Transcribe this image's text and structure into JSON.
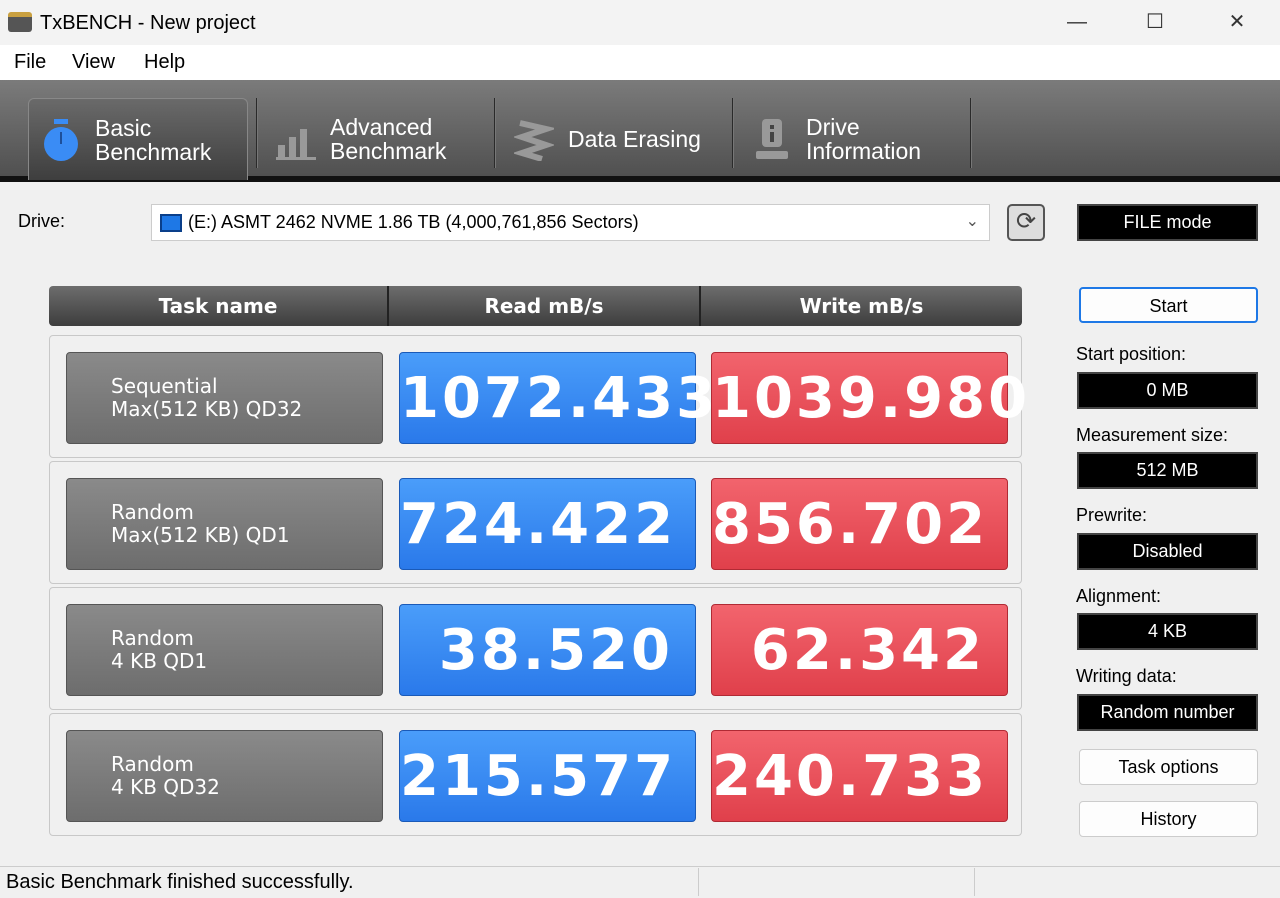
{
  "window": {
    "title": "TxBENCH - New project",
    "controls": [
      "minimize",
      "maximize",
      "close"
    ]
  },
  "menu": [
    "File",
    "View",
    "Help"
  ],
  "tabs": [
    {
      "line1": "Basic",
      "line2": "Benchmark",
      "icon": "stopwatch-icon",
      "active": true
    },
    {
      "line1": "Advanced",
      "line2": "Benchmark",
      "icon": "bar-chart-icon",
      "active": false
    },
    {
      "line1": "Data Erasing",
      "line2": "",
      "icon": "eraser-spring-icon",
      "active": false
    },
    {
      "line1": "Drive",
      "line2": "Information",
      "icon": "drive-info-icon",
      "active": false
    }
  ],
  "drive": {
    "label": "Drive:",
    "value": "(E:) ASMT 2462 NVME  1.86 TB (4,000,761,856 Sectors)"
  },
  "mode": "FILE mode",
  "table": {
    "headers": [
      "Task name",
      "Read mB/s",
      "Write mB/s"
    ],
    "rows": [
      {
        "name1": "Sequential",
        "name2": "Max(512 KB) QD32",
        "read": "1072.433",
        "write": "1039.980"
      },
      {
        "name1": "Random",
        "name2": "Max(512 KB) QD1",
        "read": "724.422",
        "write": "856.702"
      },
      {
        "name1": "Random",
        "name2": "4 KB QD1",
        "read": "38.520",
        "write": "62.342"
      },
      {
        "name1": "Random",
        "name2": "4 KB QD32",
        "read": "215.577",
        "write": "240.733"
      }
    ]
  },
  "panel": {
    "start": "Start",
    "start_position_label": "Start position:",
    "start_position": "0 MB",
    "measurement_size_label": "Measurement size:",
    "measurement_size": "512 MB",
    "prewrite_label": "Prewrite:",
    "prewrite": "Disabled",
    "alignment_label": "Alignment:",
    "alignment": "4 KB",
    "writing_data_label": "Writing data:",
    "writing_data": "Random number",
    "task_options": "Task options",
    "history": "History"
  },
  "status": "Basic Benchmark finished successfully.",
  "colors": {
    "read": "#3a8cf5",
    "write": "#e8505a"
  }
}
